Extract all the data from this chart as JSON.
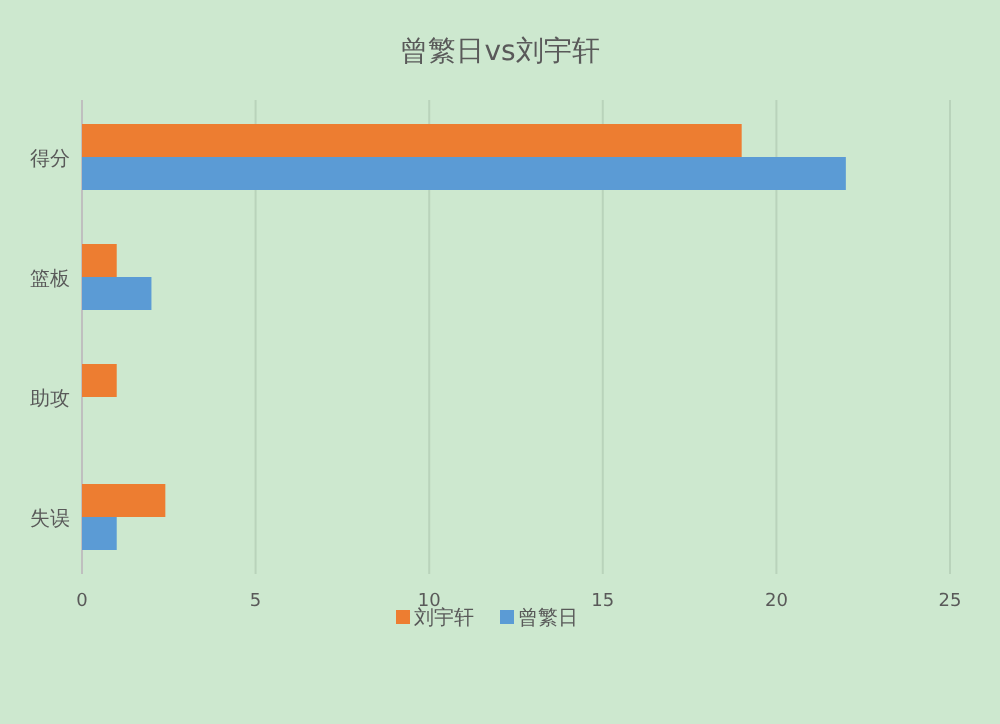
{
  "chart_data": {
    "type": "bar",
    "orientation": "horizontal",
    "title": "曾繁日vs刘宇轩",
    "categories": [
      "得分",
      "篮板",
      "助攻",
      "失误"
    ],
    "series": [
      {
        "name": "刘宇轩",
        "color": "#ed7d31",
        "values": [
          19,
          1,
          1,
          2.4
        ]
      },
      {
        "name": "曾繁日",
        "color": "#5b9bd5",
        "values": [
          22,
          2,
          null,
          1
        ]
      }
    ],
    "xlim": [
      0,
      25
    ],
    "xticks": [
      0,
      5,
      10,
      15,
      20,
      25
    ],
    "grid": "x",
    "legend": "bottom"
  }
}
